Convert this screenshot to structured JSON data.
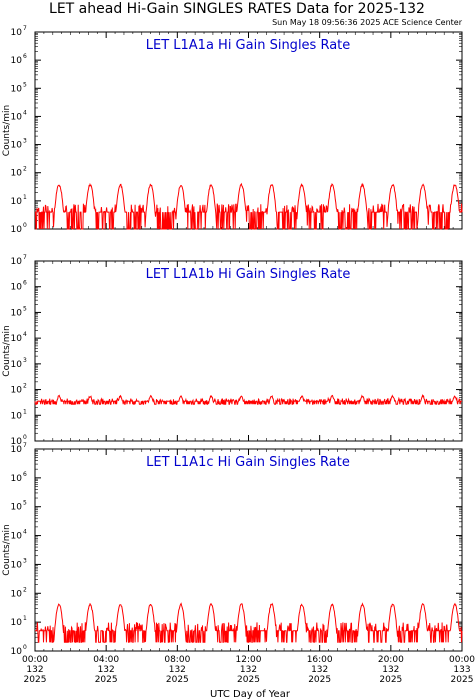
{
  "title": "LET ahead Hi-Gain SINGLES RATES Data for 2025-132",
  "timestamp": "Sun May 18 09:56:36 2025 ACE Science Center",
  "xlabel": "UTC Day of Year",
  "colors": {
    "trace": "#ff0000",
    "panel_title": "#0000cc",
    "axes": "#000000"
  },
  "chart_data": [
    {
      "type": "line",
      "title": "LET L1A1a Hi Gain Singles Rate",
      "ylabel": "Counts/min",
      "yscale": "log",
      "ylim": [
        1,
        10000000
      ],
      "xlim": [
        0,
        24
      ],
      "series": [
        {
          "baseline": 4,
          "noise_floor": 1,
          "noise_top": 8,
          "peak_value": 40,
          "peak_hours": [
            1.35,
            3.1,
            4.8,
            6.5,
            8.2,
            9.9,
            11.6,
            13.3,
            15.0,
            16.7,
            18.4,
            20.1,
            21.8,
            23.6
          ]
        }
      ]
    },
    {
      "type": "line",
      "title": "LET L1A1b Hi Gain Singles Rate",
      "ylabel": "Counts/min",
      "yscale": "log",
      "ylim": [
        1,
        10000000
      ],
      "xlim": [
        0,
        24
      ],
      "series": [
        {
          "baseline": 35,
          "noise_floor": 27,
          "noise_top": 45,
          "peak_value": 60,
          "peak_hours": [
            1.35,
            3.1,
            4.8,
            6.5,
            8.2,
            9.9,
            11.6,
            13.3,
            15.0,
            16.7,
            18.4,
            20.1,
            21.8,
            23.6
          ]
        }
      ]
    },
    {
      "type": "line",
      "title": "LET L1A1c Hi Gain Singles Rate",
      "ylabel": "Counts/min",
      "yscale": "log",
      "ylim": [
        1,
        10000000
      ],
      "xlim": [
        0,
        24
      ],
      "series": [
        {
          "baseline": 5,
          "noise_floor": 2,
          "noise_top": 10,
          "peak_value": 45,
          "peak_hours": [
            1.35,
            3.1,
            4.8,
            6.5,
            8.2,
            9.9,
            11.6,
            13.3,
            15.0,
            16.7,
            18.4,
            20.1,
            21.8,
            23.6
          ]
        }
      ]
    }
  ],
  "y_tick_labels": [
    "10",
    "10",
    "10",
    "10",
    "10",
    "10",
    "10",
    "10"
  ],
  "y_tick_exponents": [
    "0",
    "1",
    "2",
    "3",
    "4",
    "5",
    "6",
    "7"
  ],
  "x_ticks": [
    {
      "time": "00:00",
      "doy": "132",
      "year": "2025"
    },
    {
      "time": "04:00",
      "doy": "132",
      "year": "2025"
    },
    {
      "time": "08:00",
      "doy": "132",
      "year": "2025"
    },
    {
      "time": "12:00",
      "doy": "132",
      "year": "2025"
    },
    {
      "time": "16:00",
      "doy": "132",
      "year": "2025"
    },
    {
      "time": "20:00",
      "doy": "132",
      "year": "2025"
    },
    {
      "time": "00:00",
      "doy": "133",
      "year": "2025"
    }
  ]
}
